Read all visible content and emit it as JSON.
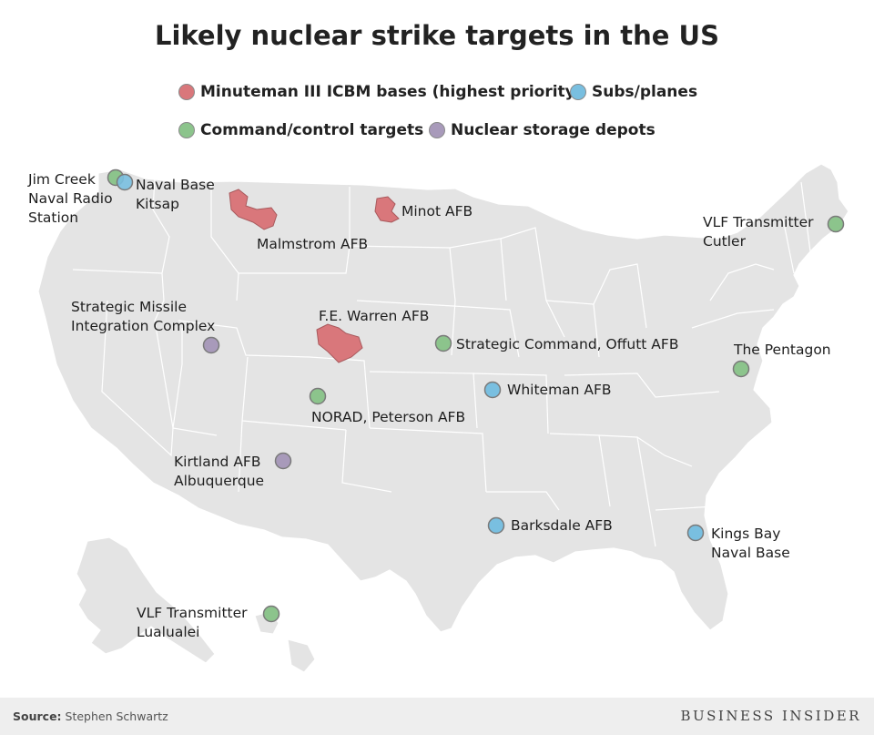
{
  "title": "Likely nuclear strike targets in the US",
  "legend": [
    {
      "label": "Minuteman III ICBM bases (highest priority)",
      "color": "#d9777b",
      "icon": "icbm-swatch-icon"
    },
    {
      "label": "Subs/planes",
      "color": "#79bfe0",
      "icon": "subs-planes-swatch-icon"
    },
    {
      "label": "Command/control targets",
      "color": "#8cc48c",
      "icon": "command-swatch-icon"
    },
    {
      "label": "Nuclear storage depots",
      "color": "#a89aba",
      "icon": "storage-swatch-icon"
    }
  ],
  "markers": [
    {
      "category": "command",
      "label": "Jim Creek\nNaval Radio\nStation"
    },
    {
      "category": "subs",
      "label": "Naval Base\nKitsap"
    },
    {
      "category": "icbm",
      "label": "Malmstrom AFB"
    },
    {
      "category": "icbm",
      "label": "Minot AFB"
    },
    {
      "category": "command",
      "label": "VLF Transmitter\nCutler"
    },
    {
      "category": "storage",
      "label": "Strategic Missile\nIntegration Complex"
    },
    {
      "category": "icbm",
      "label": "F.E. Warren AFB"
    },
    {
      "category": "command",
      "label": "Strategic Command, Offutt AFB"
    },
    {
      "category": "command",
      "label": "The Pentagon"
    },
    {
      "category": "subs",
      "label": "Whiteman AFB"
    },
    {
      "category": "command",
      "label": "NORAD, Peterson AFB"
    },
    {
      "category": "storage",
      "label": "Kirtland AFB\nAlbuquerque"
    },
    {
      "category": "subs",
      "label": "Barksdale AFB"
    },
    {
      "category": "subs",
      "label": "Kings Bay\nNaval Base"
    },
    {
      "category": "command",
      "label": "VLF Transmitter\nLualualei"
    }
  ],
  "footer": {
    "source_label": "Source:",
    "source_value": "Stephen Schwartz",
    "brand": "BUSINESS INSIDER"
  },
  "colors": {
    "land": "#e4e4e4",
    "border": "#ffffff",
    "icbm": "#d9777b",
    "subs": "#79bfe0",
    "command": "#8cc48c",
    "storage": "#a89aba"
  }
}
